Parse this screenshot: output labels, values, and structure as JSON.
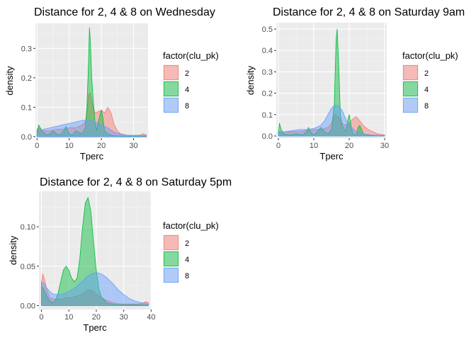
{
  "chart_data": [
    {
      "type": "area",
      "title": "Distance for 2, 4 & 8 on Wednesday",
      "xlabel": "Tperc",
      "ylabel": "density",
      "xlim": [
        -0.5,
        34.5
      ],
      "ylim": [
        -0.005,
        0.385
      ],
      "xticks": [
        0,
        10,
        20,
        30
      ],
      "yticks": [
        0.0,
        0.1,
        0.2,
        0.3
      ],
      "ytick_labels": [
        "0.0",
        "0.1",
        "0.2",
        "0.3"
      ],
      "grid": true,
      "legend": {
        "title": "factor(clu_pk)",
        "position": "right"
      },
      "series": [
        {
          "name": "2",
          "color": "#F8766D",
          "x": [
            0,
            0.5,
            2,
            4,
            6,
            8,
            10,
            12,
            14,
            15,
            15.5,
            16,
            16.5,
            17,
            18,
            19,
            20,
            21,
            22,
            23,
            24,
            25,
            26,
            28,
            30,
            32,
            33,
            34
          ],
          "y": [
            0.025,
            0.03,
            0.02,
            0.02,
            0.025,
            0.025,
            0.03,
            0.03,
            0.04,
            0.05,
            0.08,
            0.14,
            0.15,
            0.12,
            0.08,
            0.085,
            0.09,
            0.08,
            0.1,
            0.08,
            0.04,
            0.02,
            0.01,
            0.005,
            0.005,
            0.005,
            0.01,
            0.005
          ]
        },
        {
          "name": "4",
          "color": "#00BA38",
          "x": [
            0,
            0.5,
            1.5,
            3,
            4,
            5,
            6,
            7,
            8,
            9,
            10,
            11,
            12,
            13,
            14,
            15,
            15.5,
            16,
            16.3,
            16.6,
            17,
            17.5,
            18,
            18.5,
            19,
            20,
            20.5,
            21,
            22,
            23,
            24,
            26,
            28,
            30,
            32,
            34
          ],
          "y": [
            0.01,
            0.04,
            0.02,
            0.005,
            0.01,
            0.02,
            0.01,
            0.005,
            0.015,
            0.035,
            0.01,
            0.005,
            0.02,
            0.015,
            0.01,
            0.03,
            0.1,
            0.25,
            0.37,
            0.32,
            0.2,
            0.12,
            0.05,
            0.02,
            0.05,
            0.09,
            0.06,
            0.02,
            0.01,
            0.005,
            0.003,
            0.002,
            0.002,
            0.002,
            0.002,
            0.002
          ]
        },
        {
          "name": "8",
          "color": "#619CFF",
          "x": [
            0,
            1,
            2,
            4,
            6,
            8,
            10,
            12,
            14,
            16,
            17,
            18,
            20,
            22,
            24,
            26,
            28,
            30,
            32,
            34
          ],
          "y": [
            0.02,
            0.02,
            0.025,
            0.03,
            0.035,
            0.04,
            0.045,
            0.05,
            0.055,
            0.055,
            0.055,
            0.05,
            0.04,
            0.03,
            0.015,
            0.008,
            0.005,
            0.005,
            0.004,
            0.004
          ]
        }
      ]
    },
    {
      "type": "area",
      "title": "Distance for 2, 4 & 8 on Saturday 9am",
      "xlabel": "Tperc",
      "ylabel": "density",
      "xlim": [
        -0.6,
        30.6
      ],
      "ylim": [
        -0.01,
        0.53
      ],
      "xticks": [
        0,
        10,
        20,
        30
      ],
      "yticks": [
        0.0,
        0.1,
        0.2,
        0.3,
        0.4,
        0.5
      ],
      "ytick_labels": [
        "0.0",
        "0.1",
        "0.2",
        "0.3",
        "0.4",
        "0.5"
      ],
      "grid": true,
      "legend": {
        "title": "factor(clu_pk)",
        "position": "right"
      },
      "series": [
        {
          "name": "2",
          "color": "#F8766D",
          "x": [
            0,
            1,
            2,
            4,
            6,
            8,
            10,
            12,
            14,
            15,
            16,
            17,
            18,
            19,
            20,
            21,
            22,
            23,
            24,
            25,
            26,
            28,
            30
          ],
          "y": [
            0.02,
            0.02,
            0.02,
            0.02,
            0.02,
            0.025,
            0.03,
            0.03,
            0.04,
            0.06,
            0.1,
            0.09,
            0.06,
            0.05,
            0.06,
            0.08,
            0.09,
            0.07,
            0.05,
            0.035,
            0.025,
            0.01,
            0.005
          ]
        },
        {
          "name": "4",
          "color": "#00BA38",
          "x": [
            0,
            0.3,
            0.8,
            1.5,
            3,
            5,
            7,
            8,
            8.5,
            9,
            10,
            11,
            12,
            13,
            14,
            15,
            15.8,
            16.3,
            16.6,
            17,
            17.5,
            18,
            19,
            19.7,
            20,
            20.5,
            21,
            22,
            22.5,
            23,
            24,
            26,
            28,
            30
          ],
          "y": [
            0.01,
            0.06,
            0.03,
            0.01,
            0.005,
            0.01,
            0.005,
            0.02,
            0.04,
            0.02,
            0.005,
            0.02,
            0.04,
            0.02,
            0.01,
            0.03,
            0.15,
            0.45,
            0.5,
            0.35,
            0.1,
            0.05,
            0.02,
            0.08,
            0.1,
            0.05,
            0.01,
            0.005,
            0.04,
            0.05,
            0.01,
            0.002,
            0.002,
            0.002
          ]
        },
        {
          "name": "8",
          "color": "#619CFF",
          "x": [
            0,
            2,
            4,
            6,
            8,
            10,
            12,
            13,
            14,
            15,
            16,
            17,
            18,
            19,
            20,
            22,
            24,
            26,
            28,
            30
          ],
          "y": [
            0.02,
            0.02,
            0.025,
            0.03,
            0.03,
            0.035,
            0.05,
            0.07,
            0.1,
            0.13,
            0.145,
            0.14,
            0.12,
            0.08,
            0.05,
            0.02,
            0.01,
            0.005,
            0.003,
            0.003
          ]
        }
      ]
    },
    {
      "type": "area",
      "title": "Distance for 2, 4 & 8 on Saturday 5pm",
      "xlabel": "Tperc",
      "ylabel": "density",
      "xlim": [
        -0.9,
        39.9
      ],
      "ylim": [
        -0.005,
        0.145
      ],
      "xticks": [
        0,
        10,
        20,
        30,
        40
      ],
      "yticks": [
        0.0,
        0.05,
        0.1
      ],
      "ytick_labels": [
        "0.00",
        "0.05",
        "0.10"
      ],
      "grid": true,
      "legend": {
        "title": "factor(clu_pk)",
        "position": "right"
      },
      "series": [
        {
          "name": "2",
          "color": "#F8766D",
          "x": [
            0,
            0.5,
            1,
            2,
            3,
            5,
            7,
            9,
            11,
            13,
            15,
            17,
            19,
            21,
            23,
            25,
            27,
            29,
            31,
            33,
            35,
            37,
            38,
            39
          ],
          "y": [
            0.03,
            0.04,
            0.035,
            0.02,
            0.01,
            0.008,
            0.008,
            0.01,
            0.01,
            0.012,
            0.015,
            0.02,
            0.018,
            0.012,
            0.008,
            0.005,
            0.003,
            0.002,
            0.002,
            0.002,
            0.002,
            0.003,
            0.005,
            0.004
          ]
        },
        {
          "name": "4",
          "color": "#00BA38",
          "x": [
            0,
            1,
            2,
            3,
            4,
            5,
            6,
            7,
            8,
            9,
            10,
            11,
            12,
            13,
            14,
            15,
            16,
            17,
            18,
            19,
            20,
            21,
            22,
            24,
            26,
            28,
            30,
            35,
            39
          ],
          "y": [
            0.025,
            0.02,
            0.012,
            0.006,
            0.004,
            0.006,
            0.015,
            0.03,
            0.045,
            0.05,
            0.045,
            0.035,
            0.03,
            0.035,
            0.06,
            0.1,
            0.13,
            0.137,
            0.12,
            0.08,
            0.045,
            0.02,
            0.01,
            0.003,
            0.002,
            0.001,
            0.001,
            0.001,
            0.001
          ]
        },
        {
          "name": "8",
          "color": "#619CFF",
          "x": [
            0,
            1,
            2,
            3,
            4,
            6,
            8,
            10,
            12,
            14,
            16,
            18,
            20,
            22,
            24,
            26,
            28,
            30,
            32,
            34,
            36,
            38,
            39
          ],
          "y": [
            0.03,
            0.028,
            0.022,
            0.018,
            0.015,
            0.014,
            0.015,
            0.018,
            0.022,
            0.028,
            0.035,
            0.04,
            0.042,
            0.04,
            0.035,
            0.028,
            0.02,
            0.014,
            0.009,
            0.006,
            0.004,
            0.003,
            0.002
          ]
        }
      ]
    }
  ]
}
